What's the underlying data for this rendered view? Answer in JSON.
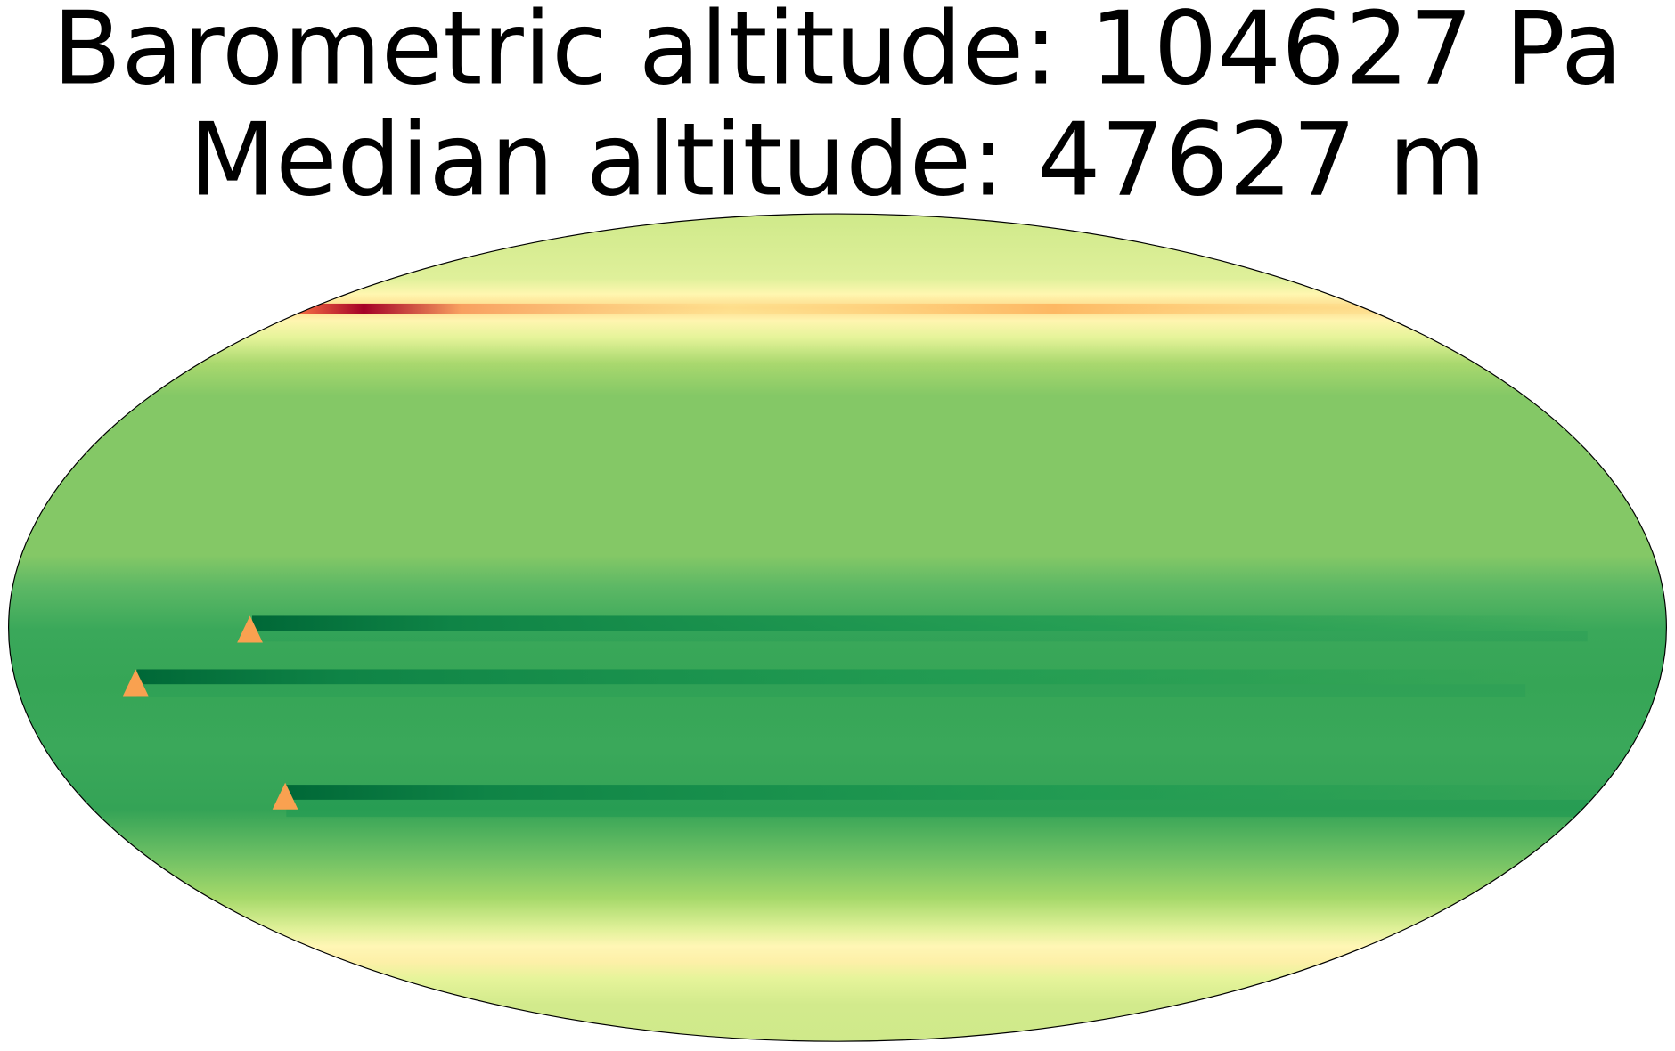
{
  "title": {
    "line1": "Barometric altitude: 104627 Pa",
    "line2": "Median altitude: 47627 m"
  }
}
